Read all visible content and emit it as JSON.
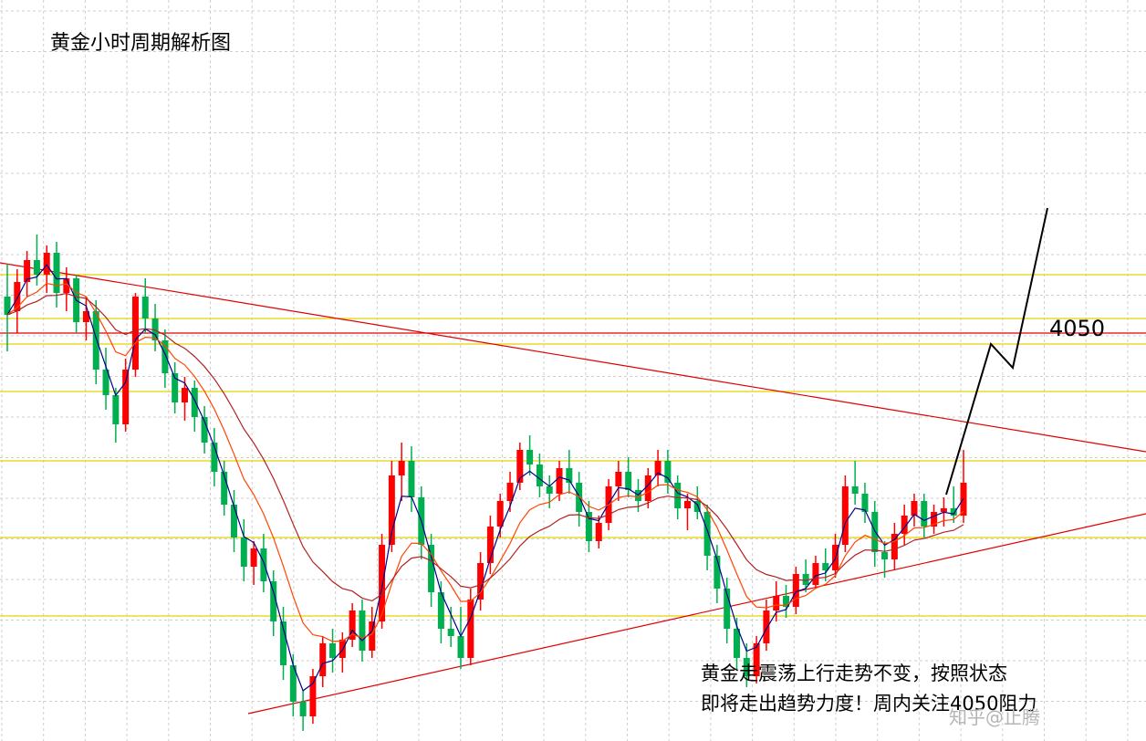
{
  "chart_data": {
    "type": "candlestick",
    "title": "黄金小时周期解析图",
    "y_grid_levels": [
      4082,
      4058,
      4044,
      4018,
      3980,
      3938,
      3895
    ],
    "red_level": 4050,
    "level_label": "4050",
    "annotation_lines": [
      "黄金走震荡上行走势不变，按照状态",
      "即将走出趋势力度！周内关注4050阻力"
    ],
    "watermark": "知乎@止腾",
    "bullish_color": "#ff0000",
    "bearish_color": "#00b050",
    "ma_colors": [
      "#00008b",
      "#ff4500",
      "#b22222"
    ],
    "grid": true,
    "candles": [
      [
        4070,
        4088,
        4040,
        4060
      ],
      [
        4062,
        4085,
        4050,
        4078
      ],
      [
        4078,
        4095,
        4070,
        4090
      ],
      [
        4090,
        4104,
        4076,
        4082
      ],
      [
        4082,
        4098,
        4072,
        4094
      ],
      [
        4094,
        4100,
        4064,
        4072
      ],
      [
        4072,
        4086,
        4062,
        4080
      ],
      [
        4080,
        4082,
        4050,
        4056
      ],
      [
        4056,
        4070,
        4046,
        4062
      ],
      [
        4062,
        4068,
        4022,
        4030
      ],
      [
        4030,
        4042,
        4008,
        4016
      ],
      [
        4016,
        4020,
        3990,
        4000
      ],
      [
        4000,
        4036,
        3996,
        4030
      ],
      [
        4030,
        4072,
        4026,
        4070
      ],
      [
        4070,
        4080,
        4050,
        4058
      ],
      [
        4058,
        4066,
        4040,
        4046
      ],
      [
        4046,
        4052,
        4020,
        4028
      ],
      [
        4028,
        4034,
        4006,
        4012
      ],
      [
        4012,
        4026,
        4002,
        4020
      ],
      [
        4020,
        4024,
        3996,
        4004
      ],
      [
        4004,
        4010,
        3984,
        3990
      ],
      [
        3990,
        3998,
        3966,
        3974
      ],
      [
        3974,
        3980,
        3950,
        3956
      ],
      [
        3956,
        3964,
        3930,
        3938
      ],
      [
        3938,
        3948,
        3914,
        3922
      ],
      [
        3922,
        3936,
        3912,
        3932
      ],
      [
        3932,
        3940,
        3908,
        3914
      ],
      [
        3914,
        3920,
        3884,
        3892
      ],
      [
        3892,
        3900,
        3860,
        3868
      ],
      [
        3868,
        3874,
        3840,
        3848
      ],
      [
        3848,
        3854,
        3832,
        3840
      ],
      [
        3840,
        3866,
        3836,
        3862
      ],
      [
        3862,
        3884,
        3856,
        3880
      ],
      [
        3880,
        3888,
        3864,
        3872
      ],
      [
        3872,
        3886,
        3864,
        3882
      ],
      [
        3882,
        3902,
        3878,
        3898
      ],
      [
        3898,
        3904,
        3870,
        3876
      ],
      [
        3876,
        3900,
        3872,
        3892
      ],
      [
        3892,
        3940,
        3888,
        3934
      ],
      [
        3934,
        3980,
        3930,
        3972
      ],
      [
        3972,
        3990,
        3958,
        3980
      ],
      [
        3980,
        3988,
        3952,
        3960
      ],
      [
        3960,
        3966,
        3926,
        3934
      ],
      [
        3934,
        3940,
        3900,
        3908
      ],
      [
        3908,
        3914,
        3880,
        3888
      ],
      [
        3888,
        3900,
        3878,
        3884
      ],
      [
        3884,
        3900,
        3866,
        3872
      ],
      [
        3872,
        3910,
        3868,
        3904
      ],
      [
        3904,
        3930,
        3898,
        3924
      ],
      [
        3924,
        3950,
        3918,
        3944
      ],
      [
        3944,
        3962,
        3938,
        3958
      ],
      [
        3958,
        3974,
        3952,
        3968
      ],
      [
        3968,
        3990,
        3964,
        3986
      ],
      [
        3986,
        3994,
        3972,
        3978
      ],
      [
        3978,
        3984,
        3960,
        3966
      ],
      [
        3966,
        3972,
        3954,
        3962
      ],
      [
        3962,
        3980,
        3958,
        3976
      ],
      [
        3976,
        3986,
        3962,
        3968
      ],
      [
        3968,
        3974,
        3944,
        3952
      ],
      [
        3952,
        3958,
        3930,
        3936
      ],
      [
        3936,
        3950,
        3932,
        3946
      ],
      [
        3946,
        3970,
        3942,
        3966
      ],
      [
        3966,
        3980,
        3958,
        3974
      ],
      [
        3974,
        3982,
        3960,
        3964
      ],
      [
        3964,
        3970,
        3952,
        3958
      ],
      [
        3958,
        3976,
        3954,
        3972
      ],
      [
        3972,
        3986,
        3966,
        3980
      ],
      [
        3980,
        3986,
        3962,
        3968
      ],
      [
        3968,
        3972,
        3948,
        3954
      ],
      [
        3954,
        3962,
        3942,
        3958
      ],
      [
        3958,
        3966,
        3948,
        3952
      ],
      [
        3952,
        3956,
        3920,
        3928
      ],
      [
        3928,
        3934,
        3902,
        3910
      ],
      [
        3910,
        3916,
        3880,
        3888
      ],
      [
        3888,
        3894,
        3866,
        3872
      ],
      [
        3872,
        3880,
        3856,
        3862
      ],
      [
        3862,
        3884,
        3858,
        3880
      ],
      [
        3880,
        3904,
        3876,
        3898
      ],
      [
        3898,
        3914,
        3892,
        3906
      ],
      [
        3906,
        3912,
        3894,
        3900
      ],
      [
        3900,
        3922,
        3896,
        3918
      ],
      [
        3918,
        3926,
        3908,
        3912
      ],
      [
        3912,
        3928,
        3910,
        3924
      ],
      [
        3924,
        3932,
        3914,
        3920
      ],
      [
        3920,
        3940,
        3916,
        3934
      ],
      [
        3934,
        3972,
        3930,
        3966
      ],
      [
        3966,
        3980,
        3956,
        3962
      ],
      [
        3962,
        3968,
        3946,
        3952
      ],
      [
        3952,
        3958,
        3922,
        3930
      ],
      [
        3930,
        3936,
        3916,
        3926
      ],
      [
        3926,
        3946,
        3920,
        3940
      ],
      [
        3940,
        3956,
        3934,
        3950
      ],
      [
        3950,
        3962,
        3944,
        3958
      ],
      [
        3958,
        3962,
        3938,
        3944
      ],
      [
        3944,
        3956,
        3940,
        3952
      ],
      [
        3952,
        3960,
        3944,
        3954
      ],
      [
        3954,
        3966,
        3946,
        3950
      ],
      [
        3950,
        3986,
        3946,
        3968
      ]
    ]
  }
}
